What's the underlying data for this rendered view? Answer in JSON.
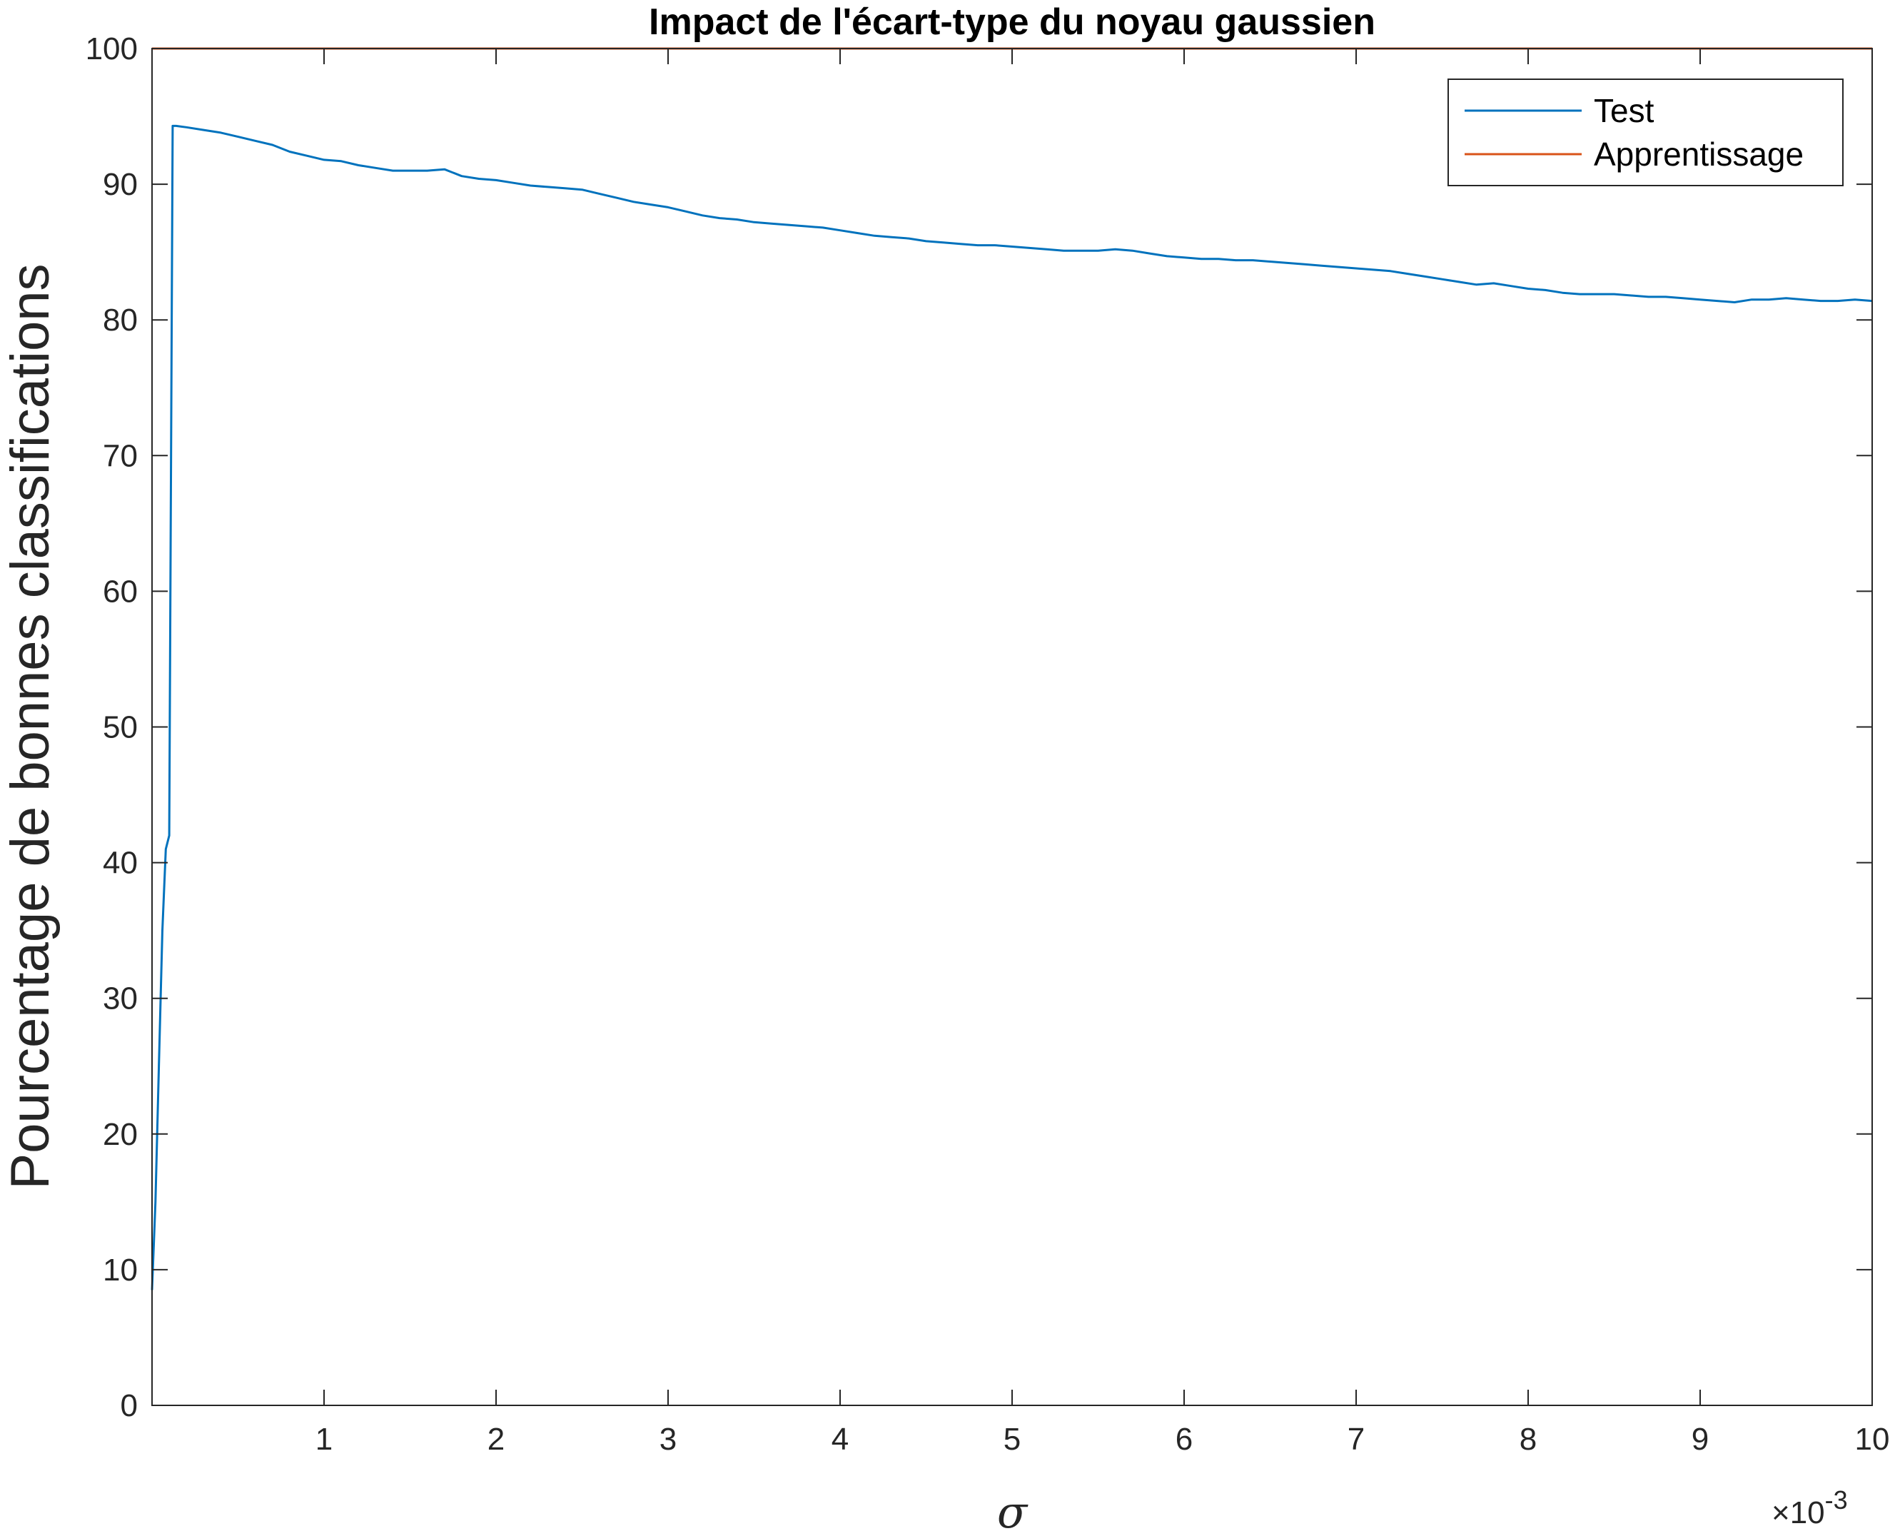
{
  "chart_data": {
    "type": "line",
    "title": "Impact de l'écart-type du noyau gaussien",
    "xlabel": "σ",
    "ylabel": "Pourcentage de bonnes classifications",
    "x_exponent_label": "×10",
    "x_exponent_power": "-3",
    "xlim": [
      0,
      10
    ],
    "ylim": [
      0,
      100
    ],
    "x_ticks": [
      1,
      2,
      3,
      4,
      5,
      6,
      7,
      8,
      9,
      10
    ],
    "y_ticks": [
      0,
      10,
      20,
      30,
      40,
      50,
      60,
      70,
      80,
      90,
      100
    ],
    "grid": false,
    "legend_position": "top-right",
    "series": [
      {
        "name": "Test",
        "color": "#0072BD",
        "x": [
          0.0,
          0.02,
          0.04,
          0.06,
          0.08,
          0.1,
          0.12,
          0.14,
          0.2,
          0.3,
          0.4,
          0.5,
          0.6,
          0.7,
          0.8,
          0.9,
          1.0,
          1.1,
          1.2,
          1.3,
          1.4,
          1.5,
          1.6,
          1.7,
          1.8,
          1.9,
          2.0,
          2.1,
          2.2,
          2.3,
          2.4,
          2.5,
          2.6,
          2.7,
          2.8,
          2.9,
          3.0,
          3.1,
          3.2,
          3.3,
          3.4,
          3.5,
          3.6,
          3.7,
          3.8,
          3.9,
          4.0,
          4.1,
          4.2,
          4.3,
          4.4,
          4.5,
          4.6,
          4.7,
          4.8,
          4.9,
          5.0,
          5.1,
          5.2,
          5.3,
          5.4,
          5.5,
          5.6,
          5.7,
          5.8,
          5.9,
          6.0,
          6.1,
          6.2,
          6.3,
          6.4,
          6.5,
          6.6,
          6.7,
          6.8,
          6.9,
          7.0,
          7.1,
          7.2,
          7.3,
          7.4,
          7.5,
          7.6,
          7.7,
          7.8,
          7.9,
          8.0,
          8.1,
          8.2,
          8.3,
          8.4,
          8.5,
          8.6,
          8.7,
          8.8,
          8.9,
          9.0,
          9.1,
          9.2,
          9.3,
          9.4,
          9.5,
          9.6,
          9.7,
          9.8,
          9.9,
          10.0
        ],
        "y": [
          8.5,
          15,
          25,
          35,
          41,
          42,
          94.3,
          94.3,
          94.2,
          94.0,
          93.8,
          93.5,
          93.2,
          92.9,
          92.4,
          92.1,
          91.8,
          91.7,
          91.4,
          91.2,
          91.0,
          91.0,
          91.0,
          91.1,
          90.6,
          90.4,
          90.3,
          90.1,
          89.9,
          89.8,
          89.7,
          89.6,
          89.3,
          89.0,
          88.7,
          88.5,
          88.3,
          88.0,
          87.7,
          87.5,
          87.4,
          87.2,
          87.1,
          87.0,
          86.9,
          86.8,
          86.6,
          86.4,
          86.2,
          86.1,
          86.0,
          85.8,
          85.7,
          85.6,
          85.5,
          85.5,
          85.4,
          85.3,
          85.2,
          85.1,
          85.1,
          85.1,
          85.2,
          85.1,
          84.9,
          84.7,
          84.6,
          84.5,
          84.5,
          84.4,
          84.4,
          84.3,
          84.2,
          84.1,
          84.0,
          83.9,
          83.8,
          83.7,
          83.6,
          83.4,
          83.2,
          83.0,
          82.8,
          82.6,
          82.7,
          82.5,
          82.3,
          82.2,
          82.0,
          81.9,
          81.9,
          81.9,
          81.8,
          81.7,
          81.7,
          81.6,
          81.5,
          81.4,
          81.3,
          81.5,
          81.5,
          81.6,
          81.5,
          81.4,
          81.4,
          81.5,
          81.4
        ]
      },
      {
        "name": "Apprentissage",
        "color": "#D95319",
        "x": [
          0,
          10
        ],
        "y": [
          100,
          100
        ]
      }
    ]
  }
}
